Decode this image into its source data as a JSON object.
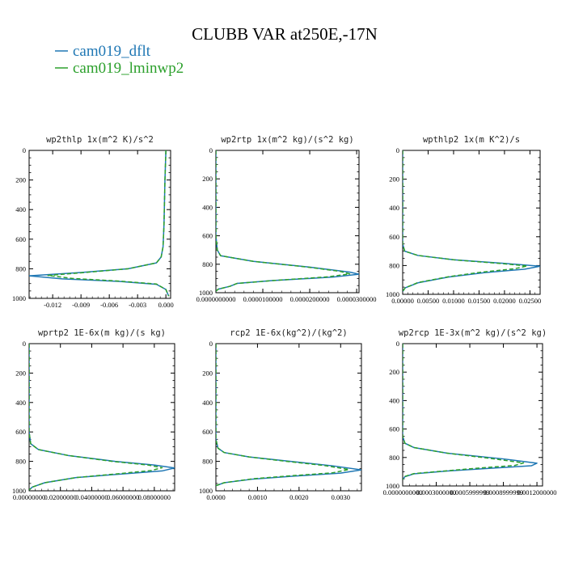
{
  "figure_title": "CLUBB VAR at250E,-17N",
  "colors": {
    "dflt": "#1f77b4",
    "lminwp2": "#2ca02c",
    "axis": "#000000"
  },
  "legend": [
    {
      "label": "cam019_dflt",
      "color": "#1f77b4"
    },
    {
      "label": "cam019_lminwp2",
      "color": "#2ca02c"
    }
  ],
  "chart_data": [
    {
      "type": "line",
      "title": "wp2thlp  1x(m^2 K)/s^2",
      "xlim": [
        -0.0145,
        0.0005
      ],
      "ylim": [
        0,
        1000
      ],
      "y_inverted": true,
      "xticks": [
        -0.012,
        -0.009,
        -0.006,
        -0.003,
        0.0
      ],
      "xtick_labels": [
        "-0.012",
        "-0.009",
        "-0.006",
        "-0.003",
        "0.000"
      ],
      "yticks": [
        0,
        200,
        400,
        600,
        800,
        1000
      ],
      "ytick_labels": [
        "0",
        "200",
        "400",
        "600",
        "800",
        "1000"
      ],
      "series": [
        {
          "name": "cam019_dflt",
          "style": "solid",
          "points": [
            [
              0.0,
              0
            ],
            [
              -0.0001,
              200
            ],
            [
              -0.0002,
              500
            ],
            [
              -0.0003,
              650
            ],
            [
              -0.0005,
              720
            ],
            [
              -0.001,
              760
            ],
            [
              -0.004,
              800
            ],
            [
              -0.009,
              825
            ],
            [
              -0.0145,
              848
            ],
            [
              -0.011,
              868
            ],
            [
              -0.005,
              885
            ],
            [
              -0.001,
              905
            ],
            [
              0.0,
              940
            ],
            [
              0.0003,
              985
            ]
          ]
        },
        {
          "name": "cam019_lminwp2",
          "style": "dashed",
          "points": [
            [
              0.0,
              0
            ],
            [
              -0.0001,
              200
            ],
            [
              -0.0002,
              500
            ],
            [
              -0.0003,
              650
            ],
            [
              -0.0005,
              720
            ],
            [
              -0.001,
              760
            ],
            [
              -0.004,
              800
            ],
            [
              -0.008,
              822
            ],
            [
              -0.0125,
              845
            ],
            [
              -0.01,
              865
            ],
            [
              -0.005,
              883
            ],
            [
              -0.001,
              903
            ],
            [
              0.0,
              940
            ],
            [
              0.0003,
              985
            ]
          ]
        }
      ]
    },
    {
      "type": "line",
      "title": "wp2rtp  1x(m^2 kg)/(s^2 kg)",
      "xlim": [
        0.0,
        3.05e-05
      ],
      "ylim": [
        0,
        1000
      ],
      "y_inverted": true,
      "xticks": [
        0.0,
        1e-05,
        2e-05,
        3e-05
      ],
      "xtick_labels": [
        "0.0000000000",
        "0.0000100000",
        "0.0000200000",
        "0.0000300000"
      ],
      "yticks": [
        0,
        200,
        400,
        600,
        800,
        1000
      ],
      "ytick_labels": [
        "0",
        "200",
        "400",
        "600",
        "800",
        "1000"
      ],
      "series": [
        {
          "name": "cam019_dflt",
          "style": "solid",
          "points": [
            [
              0.0,
              0
            ],
            [
              0.0,
              600
            ],
            [
              3e-07,
              700
            ],
            [
              1e-06,
              740
            ],
            [
              8e-06,
              780
            ],
            [
              2e-05,
              820
            ],
            [
              2.85e-05,
              855
            ],
            [
              3.05e-05,
              870
            ],
            [
              2.5e-05,
              890
            ],
            [
              1.2e-05,
              915
            ],
            [
              4.5e-06,
              935
            ],
            [
              3e-06,
              955
            ],
            [
              5e-07,
              975
            ],
            [
              0.0,
              990
            ]
          ]
        },
        {
          "name": "cam019_lminwp2",
          "style": "dashed",
          "points": [
            [
              0.0,
              0
            ],
            [
              0.0,
              600
            ],
            [
              3e-07,
              700
            ],
            [
              1e-06,
              740
            ],
            [
              8e-06,
              780
            ],
            [
              1.9e-05,
              818
            ],
            [
              2.65e-05,
              850
            ],
            [
              2.85e-05,
              868
            ],
            [
              2.4e-05,
              888
            ],
            [
              1.2e-05,
              915
            ],
            [
              4.5e-06,
              935
            ],
            [
              3e-06,
              955
            ],
            [
              5e-07,
              975
            ],
            [
              0.0,
              990
            ]
          ]
        }
      ]
    },
    {
      "type": "line",
      "title": "wpthlp2  1x(m K^2)/s",
      "xlim": [
        0.0,
        0.027
      ],
      "ylim": [
        0,
        1000
      ],
      "y_inverted": true,
      "xticks": [
        0.0,
        0.005,
        0.01,
        0.015,
        0.02,
        0.025
      ],
      "xtick_labels": [
        "0.00000",
        "0.00500",
        "0.01000",
        "0.01500",
        "0.02000",
        "0.02500"
      ],
      "yticks": [
        0,
        200,
        400,
        600,
        800,
        1000
      ],
      "ytick_labels": [
        "0",
        "200",
        "400",
        "600",
        "800",
        "1000"
      ],
      "series": [
        {
          "name": "cam019_dflt",
          "style": "solid",
          "points": [
            [
              0.0,
              0
            ],
            [
              0.0,
              650
            ],
            [
              0.0004,
              700
            ],
            [
              0.003,
              730
            ],
            [
              0.01,
              760
            ],
            [
              0.02,
              785
            ],
            [
              0.027,
              805
            ],
            [
              0.024,
              825
            ],
            [
              0.016,
              850
            ],
            [
              0.009,
              880
            ],
            [
              0.003,
              920
            ],
            [
              0.0005,
              955
            ],
            [
              0.0,
              980
            ]
          ]
        },
        {
          "name": "cam019_lminwp2",
          "style": "dashed",
          "points": [
            [
              0.0,
              0
            ],
            [
              0.0,
              650
            ],
            [
              0.0004,
              700
            ],
            [
              0.003,
              730
            ],
            [
              0.01,
              760
            ],
            [
              0.019,
              785
            ],
            [
              0.0245,
              803
            ],
            [
              0.022,
              822
            ],
            [
              0.015,
              848
            ],
            [
              0.009,
              878
            ],
            [
              0.003,
              918
            ],
            [
              0.0005,
              955
            ],
            [
              0.0,
              980
            ]
          ]
        }
      ]
    },
    {
      "type": "line",
      "title": "wprtp2  1E-6x(m kg)/(s kg)",
      "xlim": [
        0.0,
        0.093
      ],
      "ylim": [
        0,
        1000
      ],
      "y_inverted": true,
      "xticks": [
        0.0,
        0.02,
        0.04,
        0.06,
        0.08
      ],
      "xtick_labels": [
        "0.00000000",
        "0.02000000",
        "0.04000000",
        "0.06000000",
        "0.08000000"
      ],
      "yticks": [
        0,
        200,
        400,
        600,
        800,
        1000
      ],
      "ytick_labels": [
        "0",
        "200",
        "400",
        "600",
        "800",
        "1000"
      ],
      "series": [
        {
          "name": "cam019_dflt",
          "style": "solid",
          "points": [
            [
              0.0,
              0
            ],
            [
              0.0,
              600
            ],
            [
              0.001,
              680
            ],
            [
              0.006,
              720
            ],
            [
              0.025,
              760
            ],
            [
              0.055,
              800
            ],
            [
              0.08,
              825
            ],
            [
              0.093,
              845
            ],
            [
              0.085,
              865
            ],
            [
              0.06,
              885
            ],
            [
              0.03,
              910
            ],
            [
              0.01,
              945
            ],
            [
              0.002,
              975
            ],
            [
              0.0,
              995
            ]
          ]
        },
        {
          "name": "cam019_lminwp2",
          "style": "dashed",
          "points": [
            [
              0.0,
              0
            ],
            [
              0.0,
              600
            ],
            [
              0.001,
              680
            ],
            [
              0.006,
              720
            ],
            [
              0.025,
              760
            ],
            [
              0.053,
              800
            ],
            [
              0.076,
              825
            ],
            [
              0.085,
              843
            ],
            [
              0.078,
              862
            ],
            [
              0.058,
              883
            ],
            [
              0.03,
              910
            ],
            [
              0.01,
              945
            ],
            [
              0.002,
              975
            ],
            [
              0.0,
              995
            ]
          ]
        }
      ]
    },
    {
      "type": "line",
      "title": "rcp2  1E-6x(kg^2)/(kg^2)",
      "xlim": [
        0.0,
        0.0035
      ],
      "ylim": [
        0,
        1000
      ],
      "y_inverted": true,
      "xticks": [
        0.0,
        0.001,
        0.002,
        0.003
      ],
      "xtick_labels": [
        "0.0000",
        "0.0010",
        "0.0020",
        "0.0030"
      ],
      "yticks": [
        0,
        200,
        400,
        600,
        800,
        1000
      ],
      "ytick_labels": [
        "0",
        "200",
        "400",
        "600",
        "800",
        "1000"
      ],
      "series": [
        {
          "name": "cam019_dflt",
          "style": "solid",
          "points": [
            [
              0.0,
              0
            ],
            [
              0.0,
              650
            ],
            [
              5e-05,
              710
            ],
            [
              0.0002,
              740
            ],
            [
              0.0008,
              770
            ],
            [
              0.0018,
              800
            ],
            [
              0.0028,
              830
            ],
            [
              0.0035,
              858
            ],
            [
              0.003,
              880
            ],
            [
              0.0019,
              900
            ],
            [
              0.0009,
              920
            ],
            [
              0.0002,
              945
            ],
            [
              0.0,
              965
            ]
          ]
        },
        {
          "name": "cam019_lminwp2",
          "style": "dashed",
          "points": [
            [
              0.0,
              0
            ],
            [
              0.0,
              650
            ],
            [
              5e-05,
              710
            ],
            [
              0.0002,
              740
            ],
            [
              0.0008,
              770
            ],
            [
              0.0017,
              800
            ],
            [
              0.0026,
              828
            ],
            [
              0.0032,
              855
            ],
            [
              0.0028,
              878
            ],
            [
              0.0018,
              898
            ],
            [
              0.0009,
              918
            ],
            [
              0.0002,
              945
            ],
            [
              0.0,
              965
            ]
          ]
        }
      ]
    },
    {
      "type": "line",
      "title": "wp2rcp  1E-3x(m^2 kg)/(s^2 kg)",
      "xlim": [
        0.0,
        0.00125
      ],
      "ylim": [
        0,
        1000
      ],
      "y_inverted": true,
      "xticks": [
        0.0,
        0.0003,
        0.0006,
        0.0009,
        0.0012
      ],
      "xtick_labels": [
        "0.0000000000",
        "0.0003000000",
        "0.0005999999",
        "0.0008999999",
        "0.0012000000"
      ],
      "yticks": [
        0,
        200,
        400,
        600,
        800,
        1000
      ],
      "ytick_labels": [
        "0",
        "200",
        "400",
        "600",
        "800",
        "1000"
      ],
      "series": [
        {
          "name": "cam019_dflt",
          "style": "solid",
          "points": [
            [
              0.0,
              0
            ],
            [
              0.0,
              650
            ],
            [
              2e-05,
              700
            ],
            [
              0.0001,
              730
            ],
            [
              0.0004,
              770
            ],
            [
              0.0009,
              810
            ],
            [
              0.0012,
              840
            ],
            [
              0.00115,
              858
            ],
            [
              0.0008,
              875
            ],
            [
              0.0004,
              895
            ],
            [
              0.0001,
              915
            ],
            [
              2e-05,
              935
            ],
            [
              0.0,
              955
            ]
          ]
        },
        {
          "name": "cam019_lminwp2",
          "style": "dashed",
          "points": [
            [
              0.0,
              0
            ],
            [
              0.0,
              650
            ],
            [
              2e-05,
              700
            ],
            [
              0.0001,
              730
            ],
            [
              0.0004,
              770
            ],
            [
              0.0008,
              808
            ],
            [
              0.00108,
              838
            ],
            [
              0.001,
              856
            ],
            [
              0.0007,
              873
            ],
            [
              0.0004,
              893
            ],
            [
              0.0001,
              913
            ],
            [
              2e-05,
              933
            ],
            [
              0.0,
              955
            ]
          ]
        }
      ]
    }
  ]
}
